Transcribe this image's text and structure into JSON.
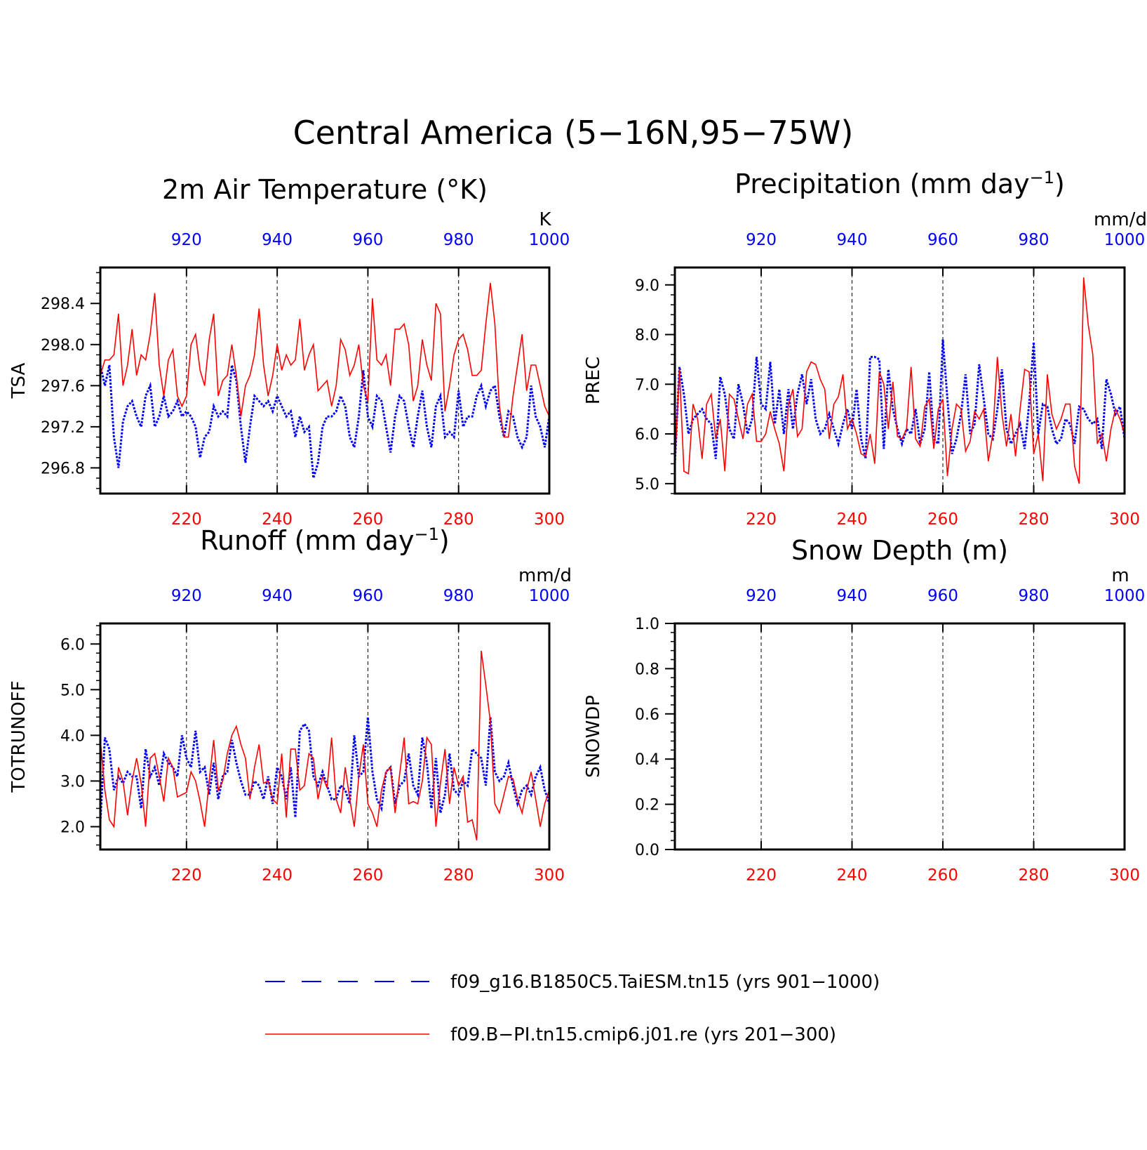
{
  "figure": {
    "title": "Central America (5−16N,95−75W)"
  },
  "colors": {
    "case1": "#0000ff",
    "case2": "#ff0000",
    "axis": "#000000",
    "grid": "#000000"
  },
  "legend": {
    "entries": [
      {
        "label": "f09_g16.B1850C5.TaiESM.tn15 (yrs 901−1000)",
        "color": "#0000ff",
        "style": "dashed"
      },
      {
        "label": "f09.B−PI.tn15.cmip6.j01.re (yrs 201−300)",
        "color": "#ff0000",
        "style": "solid"
      }
    ]
  },
  "chart_data": [
    {
      "type": "line",
      "title": "2m Air Temperature (°K)",
      "title_main": "2m Air Temperature (°K)",
      "title_sup": "",
      "title_tail": "",
      "ylabel": "TSA",
      "units": "K",
      "ylim": [
        296.55,
        298.75
      ],
      "yticks": [
        296.8,
        297.2,
        297.6,
        298.0,
        298.4
      ],
      "ytick_labels": [
        "296.8",
        "297.2",
        "297.6",
        "298.0",
        "298.4"
      ],
      "minor_step": 0.1,
      "x_bottom": {
        "range": [
          201,
          300
        ],
        "ticks": [
          220,
          240,
          260,
          280,
          300
        ]
      },
      "x_top": {
        "range": [
          901,
          1000
        ],
        "ticks": [
          920,
          940,
          960,
          980,
          1000
        ]
      },
      "grid": "dashed vertical at 20-year ticks",
      "series": [
        {
          "name": "f09_g16.B1850C5.TaiESM.tn15 (yrs 901−1000)",
          "axis": "top",
          "style": "dotted",
          "values": [
            297.8,
            297.6,
            297.8,
            297.1,
            296.8,
            297.25,
            297.4,
            297.45,
            297.3,
            297.2,
            297.5,
            297.6,
            297.2,
            297.3,
            297.5,
            297.3,
            297.35,
            297.45,
            297.3,
            297.35,
            297.3,
            297.2,
            296.9,
            297.1,
            297.15,
            297.4,
            297.3,
            297.35,
            297.3,
            297.8,
            297.65,
            297.2,
            296.85,
            297.2,
            297.5,
            297.45,
            297.4,
            297.45,
            297.35,
            297.5,
            297.4,
            297.3,
            297.35,
            297.1,
            297.3,
            297.15,
            297.2,
            296.7,
            296.85,
            297.2,
            297.3,
            297.3,
            297.35,
            297.5,
            297.4,
            297.1,
            297.0,
            297.3,
            297.75,
            297.3,
            297.2,
            297.5,
            297.45,
            297.2,
            296.95,
            297.3,
            297.5,
            297.45,
            297.2,
            297.0,
            297.3,
            297.55,
            297.2,
            297.0,
            297.4,
            297.5,
            297.1,
            297.15,
            297.1,
            297.55,
            297.2,
            297.3,
            297.3,
            297.5,
            297.6,
            297.4,
            297.55,
            297.6,
            297.3,
            297.1,
            297.35,
            297.3,
            297.1,
            297.0,
            297.1,
            297.6,
            297.3,
            297.2,
            297.0,
            297.3
          ]
        },
        {
          "name": "f09.B−PI.tn15.cmip6.j01.re (yrs 201−300)",
          "axis": "bottom",
          "style": "solid",
          "values": [
            297.7,
            297.85,
            297.85,
            297.9,
            298.3,
            297.6,
            297.8,
            298.15,
            297.7,
            297.9,
            297.85,
            298.1,
            298.5,
            297.8,
            297.5,
            297.85,
            297.95,
            297.5,
            297.4,
            297.5,
            298.0,
            298.1,
            297.75,
            297.6,
            298.05,
            298.3,
            297.5,
            297.65,
            297.7,
            298.0,
            297.7,
            297.3,
            297.6,
            297.7,
            297.9,
            298.35,
            297.8,
            297.5,
            297.7,
            298.0,
            297.75,
            297.9,
            297.8,
            297.85,
            298.25,
            297.75,
            297.9,
            298.0,
            297.55,
            297.6,
            297.65,
            297.4,
            297.6,
            298.05,
            297.95,
            297.7,
            297.8,
            298.0,
            297.6,
            297.45,
            298.45,
            297.85,
            297.8,
            297.9,
            297.6,
            298.15,
            298.15,
            298.2,
            298.0,
            297.45,
            297.6,
            298.05,
            297.8,
            297.65,
            298.4,
            298.3,
            297.35,
            297.6,
            297.9,
            298.05,
            298.1,
            297.95,
            297.7,
            297.7,
            297.75,
            298.2,
            298.6,
            298.2,
            297.4,
            297.1,
            297.1,
            297.5,
            297.8,
            298.1,
            297.55,
            297.8,
            297.8,
            297.6,
            297.4,
            297.3
          ]
        }
      ]
    },
    {
      "type": "line",
      "title": "Precipitation (mm day⁻¹)",
      "title_main": "Precipitation (mm day",
      "title_sup": "−1",
      "title_tail": ")",
      "ylabel": "PREC",
      "units": "mm/d",
      "ylim": [
        4.8,
        9.35
      ],
      "yticks": [
        5.0,
        6.0,
        7.0,
        8.0,
        9.0
      ],
      "ytick_labels": [
        "5.0",
        "6.0",
        "7.0",
        "8.0",
        "9.0"
      ],
      "minor_step": 0.2,
      "x_bottom": {
        "range": [
          201,
          300
        ],
        "ticks": [
          220,
          240,
          260,
          280,
          300
        ]
      },
      "x_top": {
        "range": [
          901,
          1000
        ],
        "ticks": [
          920,
          940,
          960,
          980,
          1000
        ]
      },
      "grid": "dashed vertical at 20-year ticks",
      "series": [
        {
          "name": "f09_g16.B1850C5.TaiESM.tn15 (yrs 901−1000)",
          "axis": "top",
          "style": "dotted",
          "values": [
            5.4,
            7.35,
            6.8,
            6.0,
            6.3,
            6.4,
            6.5,
            6.3,
            6.2,
            5.5,
            7.15,
            6.8,
            6.1,
            5.9,
            7.0,
            6.6,
            6.0,
            6.3,
            7.55,
            6.6,
            6.5,
            7.45,
            6.2,
            6.9,
            6.0,
            6.9,
            6.1,
            6.8,
            7.2,
            6.6,
            7.1,
            6.3,
            6.0,
            6.1,
            6.4,
            6.1,
            5.8,
            6.2,
            6.5,
            6.1,
            6.9,
            5.9,
            5.5,
            7.55,
            7.55,
            7.5,
            5.7,
            7.3,
            6.5,
            6.1,
            5.8,
            6.1,
            6.0,
            6.5,
            5.8,
            6.1,
            7.25,
            5.9,
            5.8,
            7.9,
            6.7,
            5.6,
            5.9,
            6.4,
            7.2,
            6.0,
            6.2,
            7.4,
            6.7,
            6.0,
            5.9,
            6.5,
            7.3,
            6.1,
            5.8,
            6.0,
            6.2,
            5.7,
            6.6,
            7.85,
            6.0,
            6.6,
            6.55,
            6.1,
            5.8,
            5.9,
            6.3,
            6.2,
            5.8,
            6.55,
            6.5,
            6.3,
            6.2,
            6.3,
            5.7,
            7.1,
            6.8,
            6.4,
            6.55,
            5.9
          ]
        },
        {
          "name": "f09.B−PI.tn15.cmip6.j01.re (yrs 201−300)",
          "axis": "bottom",
          "style": "solid",
          "values": [
            5.4,
            7.3,
            5.25,
            5.2,
            6.6,
            6.3,
            5.5,
            6.6,
            6.8,
            5.9,
            6.3,
            5.25,
            6.8,
            6.7,
            6.3,
            5.9,
            6.6,
            6.8,
            5.85,
            5.85,
            6.0,
            6.45,
            6.1,
            5.8,
            5.25,
            6.6,
            6.9,
            5.95,
            6.1,
            7.25,
            7.45,
            7.4,
            7.1,
            6.9,
            5.9,
            6.6,
            6.75,
            7.2,
            6.1,
            6.3,
            6.0,
            5.6,
            5.55,
            6.0,
            5.4,
            7.25,
            7.0,
            6.1,
            7.05,
            5.95,
            5.9,
            6.1,
            7.35,
            5.9,
            5.75,
            6.55,
            6.7,
            5.7,
            6.5,
            6.7,
            5.15,
            6.1,
            6.6,
            6.5,
            5.65,
            5.85,
            6.45,
            6.3,
            6.5,
            5.45,
            6.0,
            7.55,
            6.4,
            5.75,
            6.4,
            5.55,
            6.5,
            7.3,
            7.25,
            5.6,
            6.0,
            5.05,
            7.2,
            6.4,
            6.1,
            6.3,
            6.6,
            6.6,
            5.35,
            5.0,
            9.15,
            8.2,
            7.6,
            5.8,
            6.0,
            5.45,
            6.1,
            6.5,
            6.3,
            6.0
          ]
        }
      ]
    },
    {
      "type": "line",
      "title": "Runoff (mm day⁻¹)",
      "title_main": "Runoff (mm day",
      "title_sup": "−1",
      "title_tail": ")",
      "ylabel": "TOTRUNOFF",
      "units": "mm/d",
      "ylim": [
        1.5,
        6.45
      ],
      "yticks": [
        2.0,
        3.0,
        4.0,
        5.0,
        6.0
      ],
      "ytick_labels": [
        "2.0",
        "3.0",
        "4.0",
        "5.0",
        "6.0"
      ],
      "minor_step": 0.2,
      "x_bottom": {
        "range": [
          201,
          300
        ],
        "ticks": [
          220,
          240,
          260,
          280,
          300
        ]
      },
      "x_top": {
        "range": [
          901,
          1000
        ],
        "ticks": [
          920,
          940,
          960,
          980,
          1000
        ]
      },
      "grid": "dashed vertical at 20-year ticks",
      "series": [
        {
          "name": "f09_g16.B1850C5.TaiESM.tn15 (yrs 901−1000)",
          "axis": "top",
          "style": "dotted",
          "values": [
            2.1,
            3.95,
            3.7,
            2.8,
            3.1,
            2.95,
            3.2,
            3.1,
            3.1,
            2.4,
            3.7,
            3.1,
            3.3,
            2.9,
            3.6,
            3.4,
            3.3,
            3.1,
            4.0,
            3.5,
            3.3,
            4.1,
            3.2,
            3.3,
            2.7,
            3.4,
            2.6,
            3.1,
            3.2,
            3.9,
            3.4,
            3.0,
            2.7,
            2.7,
            3.0,
            2.9,
            2.6,
            3.1,
            2.5,
            3.3,
            3.1,
            2.6,
            3.3,
            2.2,
            4.1,
            4.25,
            4.1,
            3.1,
            2.9,
            3.2,
            2.9,
            2.6,
            2.6,
            2.9,
            2.8,
            2.5,
            4.0,
            3.1,
            3.2,
            4.4,
            3.2,
            2.6,
            2.4,
            3.2,
            3.3,
            2.5,
            2.9,
            3.0,
            3.6,
            2.9,
            2.7,
            3.95,
            3.4,
            2.4,
            3.5,
            2.3,
            2.7,
            3.6,
            2.8,
            2.7,
            3.0,
            2.9,
            3.7,
            3.6,
            3.5,
            2.9,
            4.4,
            3.2,
            3.0,
            3.1,
            3.4,
            2.9,
            2.5,
            2.8,
            2.9,
            2.7,
            3.1,
            3.3,
            2.8,
            2.5
          ]
        },
        {
          "name": "f09.B−PI.tn15.cmip6.j01.re (yrs 201−300)",
          "axis": "bottom",
          "style": "solid",
          "values": [
            3.9,
            2.8,
            2.15,
            2.0,
            3.3,
            3.0,
            2.25,
            3.0,
            3.5,
            2.95,
            2.0,
            3.5,
            3.6,
            3.1,
            2.55,
            3.5,
            3.3,
            2.65,
            2.7,
            2.75,
            3.2,
            3.0,
            2.55,
            2.0,
            3.0,
            3.9,
            2.8,
            3.0,
            3.6,
            4.0,
            4.2,
            3.8,
            3.5,
            2.6,
            3.3,
            3.8,
            2.95,
            3.0,
            2.6,
            2.5,
            3.6,
            2.2,
            3.7,
            3.7,
            2.8,
            2.9,
            3.6,
            3.5,
            2.6,
            3.1,
            2.85,
            3.95,
            2.6,
            2.3,
            3.3,
            2.6,
            2.0,
            3.1,
            3.8,
            2.5,
            2.3,
            2.0,
            2.8,
            3.2,
            3.3,
            2.3,
            3.15,
            3.95,
            2.5,
            2.55,
            2.5,
            3.0,
            3.95,
            3.8,
            2.0,
            2.95,
            3.7,
            2.5,
            3.3,
            2.9,
            3.1,
            2.1,
            2.15,
            1.7,
            5.85,
            5.1,
            4.3,
            2.5,
            2.3,
            2.7,
            3.1,
            3.05,
            2.6,
            2.3,
            2.8,
            3.2,
            2.6,
            2.0,
            2.5,
            2.8
          ]
        }
      ]
    },
    {
      "type": "line",
      "title": "Snow Depth (m)",
      "title_main": "Snow Depth (m)",
      "title_sup": "",
      "title_tail": "",
      "ylabel": "SNOWDP",
      "units": "m",
      "ylim": [
        0.0,
        1.0
      ],
      "yticks": [
        0.0,
        0.2,
        0.4,
        0.6,
        0.8,
        1.0
      ],
      "ytick_labels": [
        "0.0",
        "0.2",
        "0.4",
        "0.6",
        "0.8",
        "1.0"
      ],
      "minor_step": 0.04,
      "x_bottom": {
        "range": [
          201,
          300
        ],
        "ticks": [
          220,
          240,
          260,
          280,
          300
        ]
      },
      "x_top": {
        "range": [
          901,
          1000
        ],
        "ticks": [
          920,
          940,
          960,
          980,
          1000
        ]
      },
      "grid": "dashed vertical at 20-year ticks",
      "series": [
        {
          "name": "f09_g16.B1850C5.TaiESM.tn15 (yrs 901−1000)",
          "axis": "top",
          "style": "dotted",
          "values": [
            0,
            0,
            0,
            0,
            0,
            0,
            0,
            0,
            0,
            0,
            0,
            0,
            0,
            0,
            0,
            0,
            0,
            0,
            0,
            0,
            0,
            0,
            0,
            0,
            0,
            0,
            0,
            0,
            0,
            0,
            0,
            0,
            0,
            0,
            0,
            0,
            0,
            0,
            0,
            0,
            0,
            0,
            0,
            0,
            0,
            0,
            0,
            0,
            0,
            0,
            0,
            0,
            0,
            0,
            0,
            0,
            0,
            0,
            0,
            0,
            0,
            0,
            0,
            0,
            0,
            0,
            0,
            0,
            0,
            0,
            0,
            0,
            0,
            0,
            0,
            0,
            0,
            0,
            0,
            0,
            0,
            0,
            0,
            0,
            0,
            0,
            0,
            0,
            0,
            0,
            0,
            0,
            0,
            0,
            0,
            0,
            0,
            0,
            0,
            0
          ]
        },
        {
          "name": "f09.B−PI.tn15.cmip6.j01.re (yrs 201−300)",
          "axis": "bottom",
          "style": "solid",
          "values": [
            0,
            0,
            0,
            0,
            0,
            0,
            0,
            0,
            0,
            0,
            0,
            0,
            0,
            0,
            0,
            0,
            0,
            0,
            0,
            0,
            0,
            0,
            0,
            0,
            0,
            0,
            0,
            0,
            0,
            0,
            0,
            0,
            0,
            0,
            0,
            0,
            0,
            0,
            0,
            0,
            0,
            0,
            0,
            0,
            0,
            0,
            0,
            0,
            0,
            0,
            0,
            0,
            0,
            0,
            0,
            0,
            0,
            0,
            0,
            0,
            0,
            0,
            0,
            0,
            0,
            0,
            0,
            0,
            0,
            0,
            0,
            0,
            0,
            0,
            0,
            0,
            0,
            0,
            0,
            0,
            0,
            0,
            0,
            0,
            0,
            0,
            0,
            0,
            0,
            0,
            0,
            0,
            0,
            0,
            0,
            0,
            0,
            0,
            0,
            0
          ]
        }
      ]
    }
  ]
}
